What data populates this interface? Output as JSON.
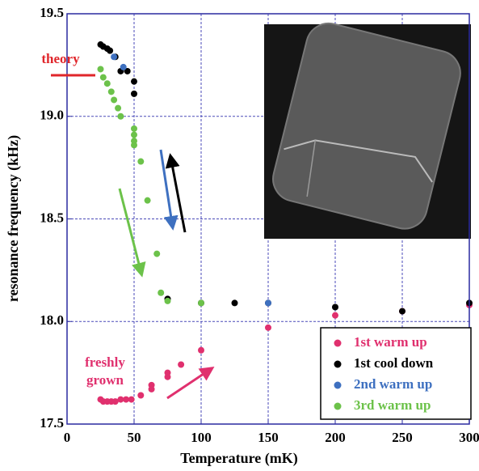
{
  "chart_data": {
    "type": "scatter",
    "xlabel": "Temperature (mK)",
    "ylabel": "resonance frequency (kHz)",
    "xlim": [
      0,
      300
    ],
    "ylim": [
      17.5,
      19.5
    ],
    "xticks": [
      0,
      50,
      100,
      150,
      200,
      250,
      300
    ],
    "yticks": [
      17.5,
      {
        "value": 18,
        "label": "18.0"
      },
      18.5,
      {
        "value": 19,
        "label": "19.0"
      },
      19.5
    ],
    "grid": true,
    "legend": "lower right",
    "theory": {
      "label": "theory",
      "value": 19.2,
      "color": "#e0262b"
    },
    "annotation": {
      "lines": [
        "freshly",
        "grown"
      ],
      "color": "#e0306e"
    },
    "series": [
      {
        "name": "1st warm up",
        "color": "#e0306e",
        "x": [
          25,
          27,
          30,
          33,
          36,
          40,
          44,
          48,
          55,
          63,
          63,
          75,
          75,
          85,
          100,
          150,
          200,
          250,
          300
        ],
        "values": [
          17.62,
          17.61,
          17.61,
          17.61,
          17.61,
          17.62,
          17.62,
          17.62,
          17.64,
          17.69,
          17.67,
          17.73,
          17.75,
          17.79,
          17.86,
          17.97,
          18.03,
          18.05,
          18.08
        ]
      },
      {
        "name": "1st cool down",
        "color": "#000000",
        "x": [
          25,
          27,
          30,
          32,
          36,
          40,
          45,
          50,
          50,
          75,
          100,
          125,
          150,
          200,
          250,
          300
        ],
        "values": [
          19.35,
          19.34,
          19.33,
          19.32,
          19.29,
          19.22,
          19.22,
          19.17,
          19.11,
          18.11,
          18.09,
          18.09,
          18.09,
          18.07,
          18.05,
          18.09
        ]
      },
      {
        "name": "2nd warm up",
        "color": "#3e70c0",
        "x": [
          35,
          42,
          150
        ],
        "values": [
          19.29,
          19.24,
          18.09
        ]
      },
      {
        "name": "3rd warm up",
        "color": "#6cc24a",
        "x": [
          25,
          27,
          30,
          33,
          35,
          38,
          40,
          50,
          50,
          50,
          50,
          55,
          60,
          67,
          70,
          75,
          100
        ],
        "values": [
          19.23,
          19.19,
          19.16,
          19.12,
          19.08,
          19.04,
          19.0,
          18.94,
          18.91,
          18.88,
          18.86,
          18.78,
          18.59,
          18.33,
          18.14,
          18.1,
          18.09
        ]
      }
    ]
  }
}
